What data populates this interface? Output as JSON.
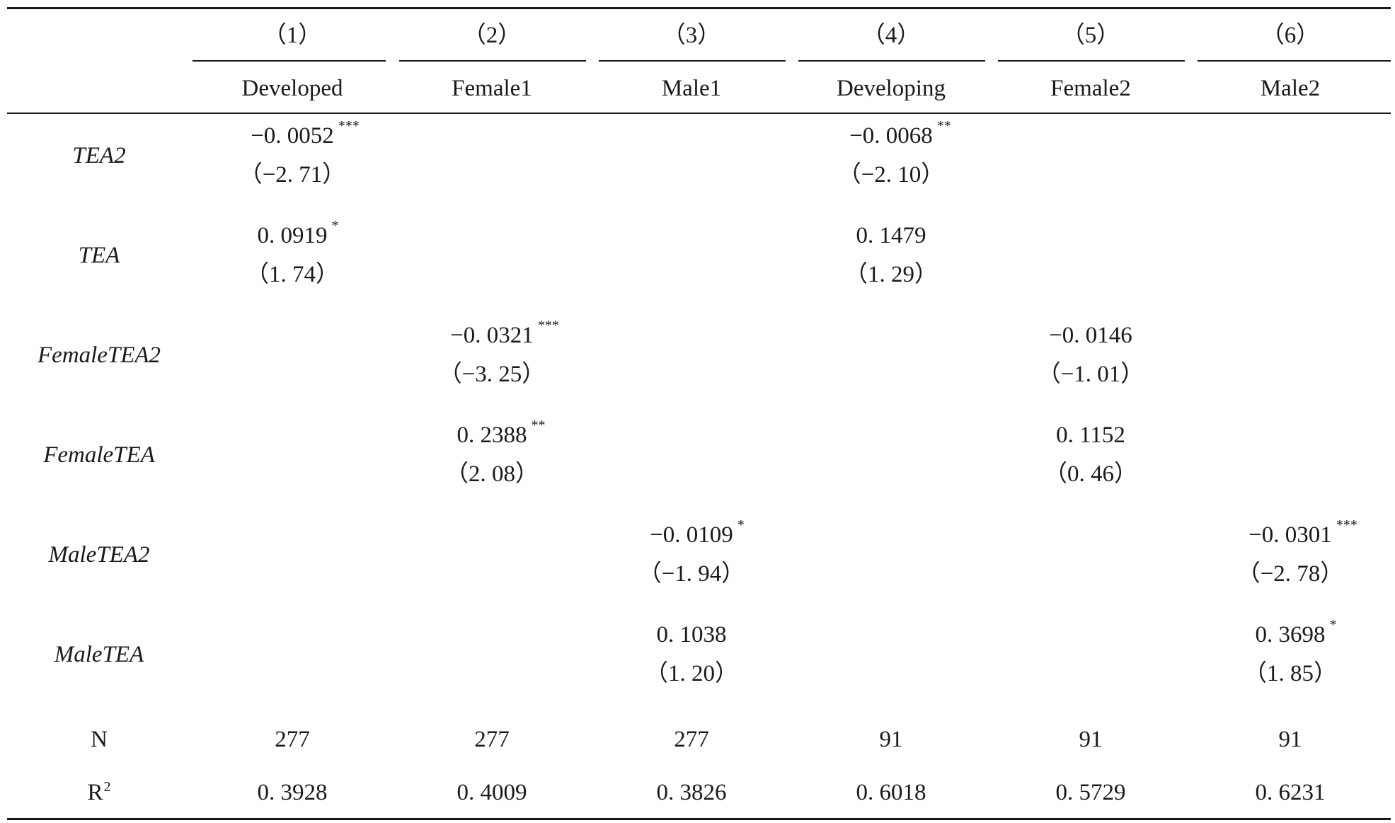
{
  "table": {
    "col_numbers": [
      "（1）",
      "（2）",
      "（3）",
      "（4）",
      "（5）",
      "（6）"
    ],
    "col_names": [
      "Developed",
      "Female1",
      "Male1",
      "Developing",
      "Female2",
      "Male2"
    ],
    "rows": [
      {
        "label": "TEA2",
        "cells": [
          {
            "coef": "−0. 0052",
            "stars": "***",
            "t": "（−2. 71）"
          },
          null,
          null,
          {
            "coef": "−0. 0068",
            "stars": "**",
            "t": "（−2. 10）"
          },
          null,
          null
        ]
      },
      {
        "label": "TEA",
        "cells": [
          {
            "coef": "0. 0919",
            "stars": "*",
            "t": "（1. 74）"
          },
          null,
          null,
          {
            "coef": "0. 1479",
            "stars": "",
            "t": "（1. 29）"
          },
          null,
          null
        ]
      },
      {
        "label": "FemaleTEA2",
        "cells": [
          null,
          {
            "coef": "−0. 0321",
            "stars": "***",
            "t": "（−3. 25）"
          },
          null,
          null,
          {
            "coef": "−0. 0146",
            "stars": "",
            "t": "（−1. 01）"
          },
          null
        ]
      },
      {
        "label": "FemaleTEA",
        "cells": [
          null,
          {
            "coef": "0. 2388",
            "stars": "**",
            "t": "（2. 08）"
          },
          null,
          null,
          {
            "coef": "0. 1152",
            "stars": "",
            "t": "（0. 46）"
          },
          null
        ]
      },
      {
        "label": "MaleTEA2",
        "cells": [
          null,
          null,
          {
            "coef": "−0. 0109",
            "stars": "*",
            "t": "（−1. 94）"
          },
          null,
          null,
          {
            "coef": "−0. 0301",
            "stars": "***",
            "t": "（−2. 78）"
          }
        ]
      },
      {
        "label": "MaleTEA",
        "cells": [
          null,
          null,
          {
            "coef": "0. 1038",
            "stars": "",
            "t": "（1. 20）"
          },
          null,
          null,
          {
            "coef": "0. 3698",
            "stars": "*",
            "t": "（1. 85）"
          }
        ]
      }
    ],
    "n": {
      "label": "N",
      "values": [
        "277",
        "277",
        "277",
        "91",
        "91",
        "91"
      ]
    },
    "r2": {
      "label": "R",
      "sup": "2",
      "values": [
        "0. 3928",
        "0. 4009",
        "0. 3826",
        "0. 6018",
        "0. 5729",
        "0. 6231"
      ]
    }
  }
}
